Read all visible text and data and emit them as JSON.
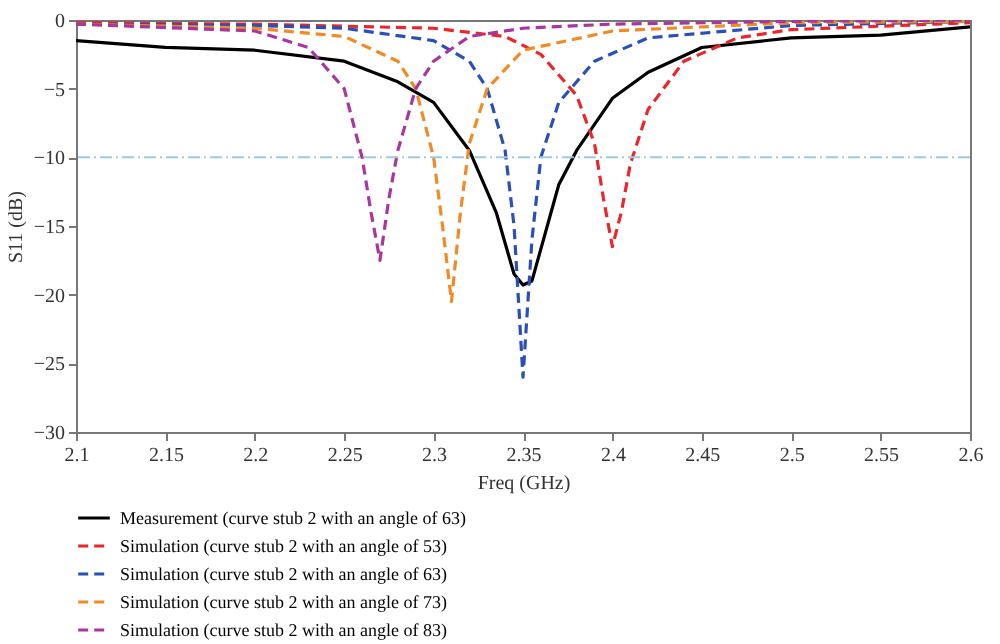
{
  "chart_data": {
    "type": "line",
    "xlabel": "Freq (GHz)",
    "ylabel": "S11 (dB)",
    "xlim": [
      2.1,
      2.6
    ],
    "xticks": [
      2.1,
      2.15,
      2.2,
      2.25,
      2.3,
      2.35,
      2.4,
      2.45,
      2.5,
      2.55,
      2.6
    ],
    "ylim": [
      -30,
      0
    ],
    "yticks": [
      -30,
      -25,
      -20,
      -15,
      -10,
      -5,
      0
    ],
    "grid": false,
    "legend": "bottom",
    "marker": "none",
    "ref_lines": [
      {
        "axis": "y",
        "value": -10,
        "color": "#9ecae1",
        "line_style": "dashdot"
      }
    ],
    "series": [
      {
        "name": "Measurement (curve stub 2 with an angle of 63)",
        "color": "#000000",
        "line_style": "solid",
        "x": [
          2.1,
          2.15,
          2.2,
          2.25,
          2.28,
          2.3,
          2.32,
          2.335,
          2.345,
          2.35,
          2.355,
          2.37,
          2.38,
          2.4,
          2.42,
          2.45,
          2.5,
          2.55,
          2.6
        ],
        "values": [
          -1.5,
          -2.0,
          -2.2,
          -3.0,
          -4.5,
          -6.0,
          -9.5,
          -14,
          -18.5,
          -19.3,
          -19,
          -12,
          -9.5,
          -5.7,
          -3.8,
          -2.0,
          -1.3,
          -1.1,
          -0.5
        ]
      },
      {
        "name": "Simulation (curve stub 2 with an angle of 53)",
        "color": "#e8262b",
        "line_style": "dashed",
        "x": [
          2.1,
          2.2,
          2.3,
          2.34,
          2.36,
          2.38,
          2.39,
          2.395,
          2.4,
          2.405,
          2.41,
          2.42,
          2.44,
          2.47,
          2.5,
          2.6
        ],
        "values": [
          -0.2,
          -0.3,
          -0.6,
          -1.2,
          -2.5,
          -5.5,
          -9,
          -13,
          -16.5,
          -14,
          -10.5,
          -6.5,
          -3,
          -1.3,
          -0.7,
          -0.2
        ]
      },
      {
        "name": "Simulation (curve stub 2 with an angle of 63)",
        "color": "#2a4fb5",
        "line_style": "dashed",
        "x": [
          2.1,
          2.2,
          2.25,
          2.3,
          2.32,
          2.33,
          2.34,
          2.345,
          2.35,
          2.355,
          2.36,
          2.37,
          2.39,
          2.42,
          2.5,
          2.6
        ],
        "values": [
          -0.3,
          -0.4,
          -0.6,
          -1.5,
          -3,
          -5,
          -9.5,
          -15,
          -26,
          -16,
          -10,
          -6,
          -3,
          -1.3,
          -0.4,
          -0.1
        ]
      },
      {
        "name": "Simulation (curve stub 2 with an angle of 73)",
        "color": "#f08a24",
        "line_style": "dashed",
        "x": [
          2.1,
          2.2,
          2.25,
          2.28,
          2.29,
          2.3,
          2.305,
          2.31,
          2.315,
          2.32,
          2.33,
          2.35,
          2.4,
          2.5,
          2.6
        ],
        "values": [
          -0.3,
          -0.6,
          -1.2,
          -3,
          -5,
          -10,
          -15,
          -20.5,
          -14,
          -9,
          -5,
          -2.2,
          -0.8,
          -0.2,
          -0.1
        ]
      },
      {
        "name": "Simulation (curve stub 2 with an angle of 83)",
        "color": "#a9369f",
        "line_style": "dashed",
        "x": [
          2.1,
          2.2,
          2.23,
          2.25,
          2.26,
          2.265,
          2.27,
          2.275,
          2.28,
          2.29,
          2.3,
          2.32,
          2.35,
          2.4,
          2.5,
          2.6
        ],
        "values": [
          -0.3,
          -0.8,
          -2,
          -5,
          -10,
          -14,
          -17.5,
          -13,
          -9.5,
          -5,
          -3,
          -1.2,
          -0.6,
          -0.3,
          -0.1,
          0
        ]
      }
    ]
  }
}
